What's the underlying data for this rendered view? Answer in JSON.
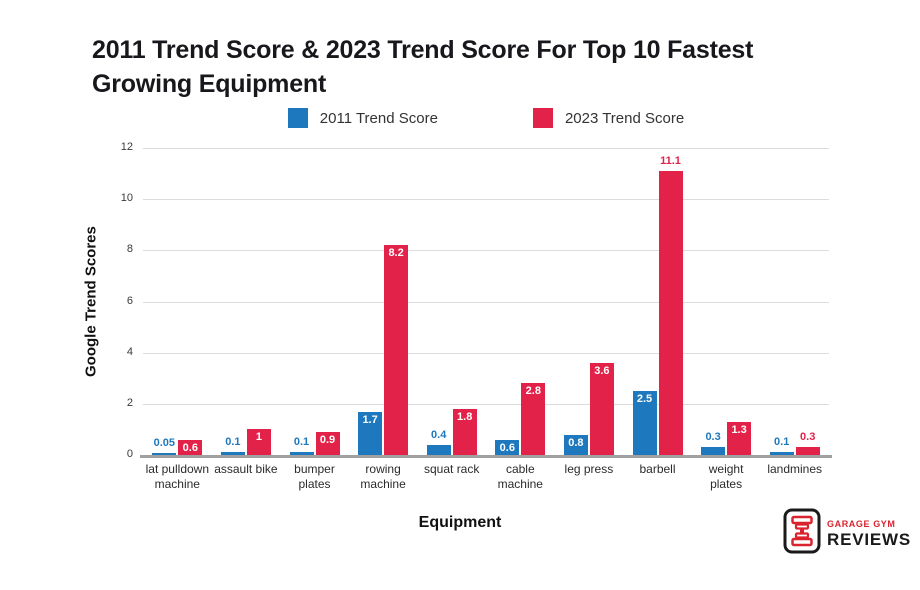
{
  "chart_data": {
    "type": "bar",
    "title": "2011 Trend Score & 2023 Trend Score For Top 10 Fastest Growing Equipment",
    "xlabel": "Equipment",
    "ylabel": "Google Trend Scores",
    "ylim": [
      0,
      12
    ],
    "yticks": [
      0,
      2,
      4,
      6,
      8,
      10,
      12
    ],
    "grid": true,
    "legend_position": "top",
    "categories": [
      "lat pulldown machine",
      "assault bike",
      "bumper plates",
      "rowing machine",
      "squat rack",
      "cable machine",
      "leg press",
      "barbell",
      "weight plates",
      "landmines"
    ],
    "category_labels": [
      [
        "lat pulldown",
        "machine"
      ],
      [
        "assault bike"
      ],
      [
        "bumper",
        "plates"
      ],
      [
        "rowing",
        "machine"
      ],
      [
        "squat rack"
      ],
      [
        "cable",
        "machine"
      ],
      [
        "leg press"
      ],
      [
        "barbell"
      ],
      [
        "weight",
        "plates"
      ],
      [
        "landmines"
      ]
    ],
    "series": [
      {
        "name": "2011 Trend Score",
        "color": "#1e78bd",
        "values": [
          0.05,
          0.1,
          0.1,
          1.7,
          0.4,
          0.6,
          0.8,
          2.5,
          0.3,
          0.1
        ],
        "labels": [
          "0.05",
          "0.1",
          "0.1",
          "1.7",
          "0.4",
          "0.6",
          "0.8",
          "2.5",
          "0.3",
          "0.1"
        ],
        "label_inside": [
          false,
          false,
          false,
          true,
          false,
          true,
          true,
          true,
          false,
          false
        ]
      },
      {
        "name": "2023 Trend Score",
        "color": "#e32249",
        "values": [
          0.6,
          1,
          0.9,
          8.2,
          1.8,
          2.8,
          3.6,
          11.1,
          1.3,
          0.3
        ],
        "labels": [
          "0.6",
          "1",
          "0.9",
          "8.2",
          "1.8",
          "2.8",
          "3.6",
          "11.1",
          "1.3",
          "0.3"
        ],
        "label_inside": [
          true,
          true,
          true,
          true,
          true,
          true,
          true,
          false,
          true,
          false
        ]
      }
    ],
    "axis_colors": {
      "gridline": "#dcdcdc",
      "baseline": "#a0a0a0",
      "tick_text": "#3a3a3a"
    }
  },
  "logo": {
    "line1": "GARAGE GYM",
    "line2": "REVIEWS",
    "accent": "#d9232e"
  }
}
